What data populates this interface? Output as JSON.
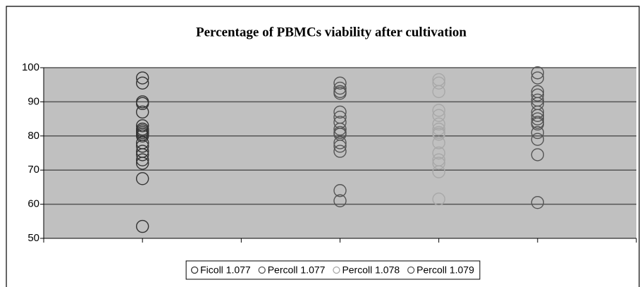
{
  "chart_data": {
    "type": "scatter",
    "title": "Percentage of PBMCs viability after cultivation",
    "xlim": [
      0,
      6
    ],
    "xticks": [
      0,
      1,
      2,
      3,
      4,
      5,
      6
    ],
    "ylim": [
      50,
      100
    ],
    "yticks": [
      50,
      60,
      70,
      80,
      90,
      100
    ],
    "grid": true,
    "legend": "bottom",
    "series": [
      {
        "name": "Ficoll 1.077",
        "color": "#333333",
        "x": [
          1,
          1,
          1,
          1,
          1,
          1,
          1,
          1,
          1,
          1,
          1,
          1,
          1,
          1,
          1,
          1,
          1,
          1,
          1
        ],
        "values": [
          97,
          95.5,
          90,
          89.5,
          87,
          83,
          82,
          81.5,
          81,
          80.5,
          80,
          78,
          77,
          75.5,
          74.5,
          73,
          72,
          67.5,
          53.5
        ]
      },
      {
        "name": "Percoll 1.077",
        "color": "#555555",
        "x": [
          3,
          3,
          3,
          3,
          3,
          3,
          3,
          3,
          3,
          3,
          3,
          3,
          3,
          3,
          3
        ],
        "values": [
          95.5,
          94,
          93,
          92.5,
          87,
          85.5,
          84,
          82,
          81,
          80.5,
          78,
          77,
          75.5,
          64,
          61
        ]
      },
      {
        "name": "Percoll 1.078",
        "color": "#a8a8a8",
        "x": [
          4,
          4,
          4,
          4,
          4,
          4,
          4,
          4,
          4,
          4,
          4,
          4,
          4,
          4,
          4
        ],
        "values": [
          96.5,
          95.5,
          93,
          87.5,
          86,
          83.5,
          82,
          81,
          80.5,
          78,
          75,
          73,
          72,
          69.5,
          61.5
        ]
      },
      {
        "name": "Percoll 1.079",
        "color": "#555555",
        "x": [
          5,
          5,
          5,
          5,
          5,
          5,
          5,
          5,
          5,
          5,
          5,
          5,
          5,
          5,
          5
        ],
        "values": [
          98.5,
          97,
          93,
          92,
          90.5,
          89.5,
          87,
          86,
          85,
          84,
          83.5,
          81,
          79,
          74.5,
          60.5
        ]
      }
    ]
  }
}
